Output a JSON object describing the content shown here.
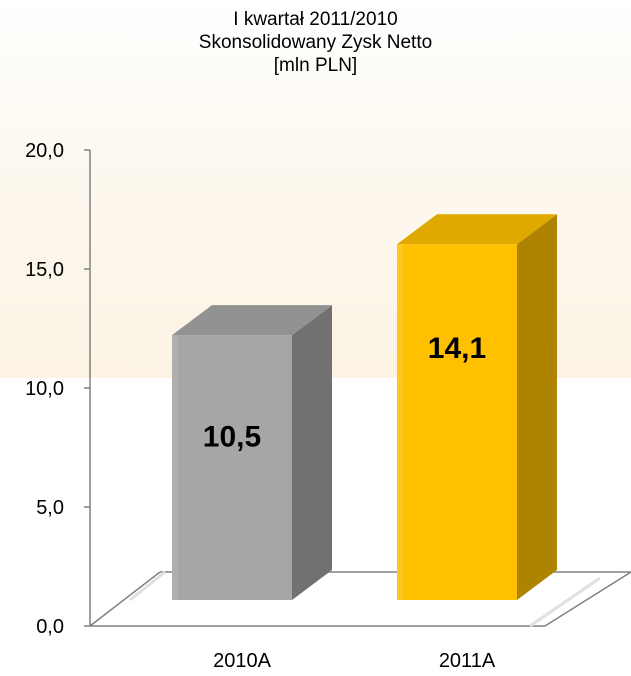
{
  "colors": {
    "series_2010": "#a6a6a6",
    "series_2011": "#ffc000",
    "axis": "#808080",
    "text": "#000000"
  },
  "chart_data": {
    "type": "bar",
    "title": "I kwartał 2011/2010",
    "subtitle": "Skonsolidowany Zysk Netto",
    "unit": "[mln PLN]",
    "categories": [
      "2010A",
      "2011A"
    ],
    "values": [
      10.5,
      14.1
    ],
    "value_labels": [
      "10,5",
      "14,1"
    ],
    "bar_colors": [
      "#a6a6a6",
      "#ffc000"
    ],
    "ylim": [
      0,
      20
    ],
    "yticks": [
      0,
      5,
      10,
      15,
      20
    ],
    "ytick_labels": [
      "0,0",
      "5,0",
      "10,0",
      "15,0",
      "20,0"
    ],
    "grid": false,
    "style": "3d-column"
  }
}
